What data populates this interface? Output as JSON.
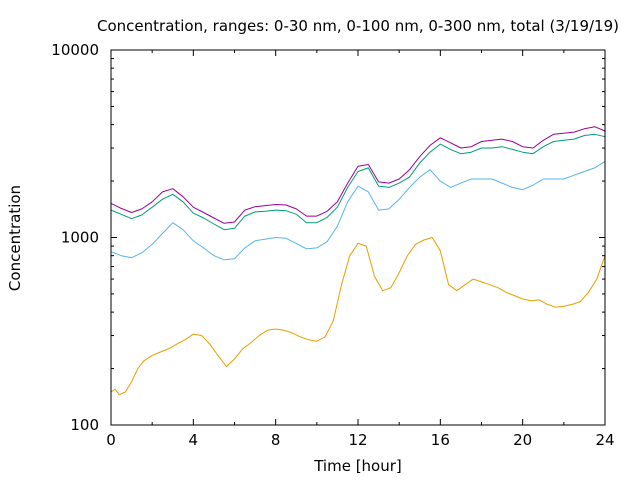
{
  "chart_data": {
    "type": "line",
    "title": "Concentration, ranges: 0-30 nm, 0-100 nm, 0-300 nm, total (3/19/19)",
    "xlabel": "Time [hour]",
    "ylabel": "Concentration",
    "xlim": [
      0,
      24
    ],
    "ylim": [
      100,
      10000
    ],
    "yscale": "log",
    "grid": false,
    "legend": "none",
    "x_ticks": [
      0,
      4,
      8,
      12,
      16,
      20,
      24
    ],
    "x_tick_labels": [
      "0",
      "4",
      "8",
      "12",
      "16",
      "20",
      "24"
    ],
    "y_ticks": [
      100,
      1000,
      10000
    ],
    "y_tick_labels": [
      "100",
      "1000",
      "10000"
    ],
    "series": [
      {
        "color": "#e69f00",
        "x": [
          0,
          0.2,
          0.4,
          0.7,
          1.0,
          1.3,
          1.6,
          2.0,
          2.4,
          2.8,
          3.2,
          3.6,
          4.0,
          4.4,
          4.8,
          5.2,
          5.6,
          6.0,
          6.4,
          6.8,
          7.2,
          7.6,
          8.0,
          8.4,
          8.8,
          9.2,
          9.6,
          10.0,
          10.4,
          10.8,
          11.2,
          11.6,
          12.0,
          12.4,
          12.8,
          13.2,
          13.6,
          14.0,
          14.4,
          14.8,
          15.2,
          15.6,
          16.0,
          16.4,
          16.8,
          17.2,
          17.6,
          18.0,
          18.4,
          18.8,
          19.2,
          19.6,
          20.0,
          20.4,
          20.8,
          21.2,
          21.6,
          22.0,
          22.4,
          22.8,
          23.2,
          23.6,
          24.0
        ],
        "y": [
          150,
          155,
          145,
          150,
          170,
          200,
          220,
          235,
          245,
          255,
          270,
          285,
          305,
          300,
          270,
          235,
          205,
          225,
          255,
          275,
          300,
          320,
          325,
          320,
          310,
          295,
          285,
          280,
          295,
          360,
          560,
          800,
          930,
          900,
          620,
          520,
          540,
          650,
          800,
          920,
          970,
          1000,
          850,
          560,
          520,
          560,
          600,
          580,
          560,
          540,
          510,
          490,
          470,
          460,
          465,
          440,
          425,
          430,
          440,
          455,
          510,
          600,
          800
        ]
      },
      {
        "color": "#56b4e9",
        "x": [
          0,
          0.5,
          1.0,
          1.5,
          2.0,
          2.5,
          3.0,
          3.5,
          4.0,
          4.5,
          5.0,
          5.5,
          6.0,
          6.5,
          7.0,
          7.5,
          8.0,
          8.5,
          9.0,
          9.5,
          10.0,
          10.5,
          11.0,
          11.5,
          12.0,
          12.5,
          13.0,
          13.5,
          14.0,
          14.5,
          15.0,
          15.5,
          16.0,
          16.5,
          17.0,
          17.5,
          18.0,
          18.5,
          19.0,
          19.5,
          20.0,
          20.5,
          21.0,
          21.5,
          22.0,
          22.5,
          23.0,
          23.5,
          24.0
        ],
        "y": [
          840,
          800,
          780,
          830,
          920,
          1050,
          1200,
          1100,
          960,
          880,
          800,
          760,
          770,
          880,
          960,
          980,
          1000,
          990,
          930,
          870,
          880,
          950,
          1150,
          1550,
          1880,
          1750,
          1400,
          1420,
          1600,
          1850,
          2100,
          2300,
          2000,
          1850,
          1950,
          2050,
          2050,
          2050,
          1950,
          1850,
          1800,
          1900,
          2050,
          2050,
          2050,
          2150,
          2250,
          2350,
          2550
        ]
      },
      {
        "color": "#009e73",
        "x": [
          0,
          0.5,
          1.0,
          1.5,
          2.0,
          2.5,
          3.0,
          3.5,
          4.0,
          4.5,
          5.0,
          5.5,
          6.0,
          6.5,
          7.0,
          7.5,
          8.0,
          8.5,
          9.0,
          9.5,
          10.0,
          10.5,
          11.0,
          11.5,
          12.0,
          12.5,
          13.0,
          13.5,
          14.0,
          14.5,
          15.0,
          15.5,
          16.0,
          16.5,
          17.0,
          17.5,
          18.0,
          18.5,
          19.0,
          19.5,
          20.0,
          20.5,
          21.0,
          21.5,
          22.0,
          22.5,
          23.0,
          23.5,
          24.0
        ],
        "y": [
          1400,
          1330,
          1260,
          1320,
          1450,
          1600,
          1700,
          1550,
          1350,
          1270,
          1180,
          1100,
          1120,
          1300,
          1370,
          1380,
          1400,
          1390,
          1330,
          1200,
          1200,
          1280,
          1450,
          1850,
          2250,
          2350,
          1880,
          1850,
          1950,
          2100,
          2500,
          2850,
          3150,
          2950,
          2800,
          2850,
          3000,
          3000,
          3050,
          2950,
          2850,
          2800,
          3050,
          3250,
          3300,
          3350,
          3500,
          3550,
          3450
        ]
      },
      {
        "color": "#990099",
        "x": [
          0,
          0.5,
          1.0,
          1.5,
          2.0,
          2.5,
          3.0,
          3.5,
          4.0,
          4.5,
          5.0,
          5.5,
          6.0,
          6.5,
          7.0,
          7.5,
          8.0,
          8.5,
          9.0,
          9.5,
          10.0,
          10.5,
          11.0,
          11.5,
          12.0,
          12.5,
          13.0,
          13.5,
          14.0,
          14.5,
          15.0,
          15.5,
          16.0,
          16.5,
          17.0,
          17.5,
          18.0,
          18.5,
          19.0,
          19.5,
          20.0,
          20.5,
          21.0,
          21.5,
          22.0,
          22.5,
          23.0,
          23.5,
          24.0
        ],
        "y": [
          1520,
          1430,
          1360,
          1420,
          1550,
          1750,
          1820,
          1650,
          1450,
          1360,
          1270,
          1190,
          1210,
          1400,
          1460,
          1480,
          1500,
          1490,
          1420,
          1300,
          1300,
          1380,
          1550,
          1950,
          2400,
          2450,
          1980,
          1950,
          2050,
          2300,
          2700,
          3100,
          3400,
          3200,
          3000,
          3050,
          3250,
          3300,
          3350,
          3250,
          3050,
          3000,
          3300,
          3550,
          3600,
          3650,
          3800,
          3900,
          3700
        ]
      }
    ]
  }
}
